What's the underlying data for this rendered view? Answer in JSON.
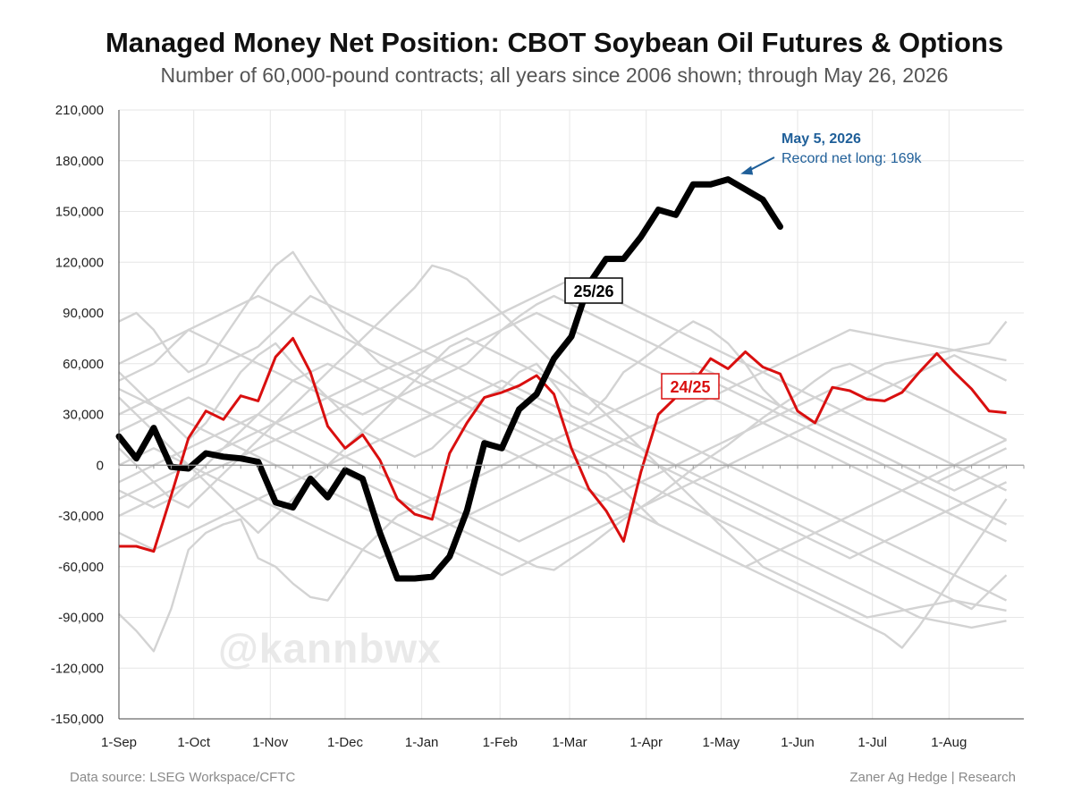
{
  "title": "Managed Money Net Position: CBOT Soybean Oil Futures & Options",
  "subtitle": "Number of 60,000-pound contracts; all years since 2006 shown; through May 26, 2026",
  "watermark": "@kannbwx",
  "footer": {
    "source": "Data source: LSEG Workspace/CFTC",
    "credit": "Zaner Ag Hedge | Research"
  },
  "colors": {
    "current": "#000000",
    "previous": "#d90f0f",
    "history": "#d3d3d3",
    "annotation": "#1f5f99"
  },
  "chart_data": {
    "type": "line",
    "x_unit": "weeks since Sep 1",
    "xlim": [
      0,
      52
    ],
    "ylim": [
      -150000,
      210000
    ],
    "y_ticks": [
      -150000,
      -120000,
      -90000,
      -60000,
      -30000,
      0,
      30000,
      60000,
      90000,
      120000,
      150000,
      180000,
      210000
    ],
    "y_tick_labels": [
      "-150,000",
      "-120,000",
      "-90,000",
      "-60,000",
      "-30,000",
      "0",
      "30,000",
      "60,000",
      "90,000",
      "120,000",
      "150,000",
      "180,000",
      "210,000"
    ],
    "x_ticks": [
      0,
      4.3,
      8.7,
      13,
      17.4,
      21.9,
      25.9,
      30.3,
      34.6,
      39,
      43.3,
      47.7
    ],
    "x_tick_labels": [
      "1-Sep",
      "1-Oct",
      "1-Nov",
      "1-Dec",
      "1-Jan",
      "1-Feb",
      "1-Mar",
      "1-Apr",
      "1-May",
      "1-Jun",
      "1-Jul",
      "1-Aug"
    ],
    "grid": true,
    "legend": "none",
    "series": [
      {
        "name": "25/26",
        "label": "25/26",
        "color": "#000000",
        "width": 7,
        "y": [
          17000,
          4000,
          22000,
          -1000,
          -2000,
          7000,
          5000,
          4000,
          2000,
          -22000,
          -25000,
          -8000,
          -19000,
          -3000,
          -8000,
          -40000,
          -67000,
          -67000,
          -66000,
          -54000,
          -27000,
          13000,
          10000,
          33000,
          42000,
          63000,
          76000,
          107000,
          122000,
          122000,
          135000,
          151000,
          148000,
          166000,
          166000,
          169000,
          163000,
          157000,
          141000
        ]
      },
      {
        "name": "24/25",
        "label": "24/25",
        "color": "#d90f0f",
        "width": 3,
        "y": [
          -48000,
          -48000,
          -51000,
          -18000,
          16000,
          32000,
          27000,
          41000,
          38000,
          64000,
          75000,
          55000,
          23000,
          10000,
          18000,
          3000,
          -20000,
          -29000,
          -32000,
          7000,
          25000,
          40000,
          43000,
          47000,
          53000,
          42000,
          10000,
          -14000,
          -27000,
          -45000,
          -4000,
          30000,
          40000,
          49000,
          63000,
          57000,
          67000,
          58000,
          54000,
          32000,
          25000,
          46000,
          44000,
          39000,
          38000,
          43000,
          55000,
          66000,
          55000,
          45000,
          32000,
          31000
        ]
      },
      {
        "name": "",
        "y": [
          55000,
          45000,
          35000,
          25000,
          15000,
          25000,
          40000,
          55000,
          65000,
          72000,
          60000,
          50000,
          40000,
          30000,
          20000,
          15000,
          10000,
          5000,
          10000,
          20000,
          30000,
          40000,
          45000,
          55000,
          60000,
          48000,
          35000,
          30000,
          40000,
          55000,
          62000,
          70000,
          78000,
          85000,
          80000,
          72000,
          60000,
          45000,
          35000,
          30000,
          25000,
          20000,
          15000,
          10000,
          5000,
          0,
          -5000,
          -10000,
          -5000,
          0,
          5000,
          10000
        ]
      },
      {
        "name": "",
        "y": [
          85000,
          90000,
          80000,
          65000,
          55000,
          60000,
          75000,
          90000,
          105000,
          118000,
          126000,
          110000,
          95000,
          80000,
          70000,
          60000,
          55000,
          50000,
          45000,
          40000,
          35000,
          30000,
          25000,
          20000,
          15000,
          10000,
          5000,
          0,
          -5000,
          -15000,
          -25000,
          -35000,
          -40000,
          -45000,
          -50000,
          -55000,
          -60000,
          -55000,
          -50000,
          -45000,
          -40000,
          -35000,
          -30000,
          -25000,
          -20000,
          -15000,
          -10000,
          -5000,
          0,
          5000,
          10000,
          15000
        ]
      },
      {
        "name": "",
        "y": [
          -88000,
          -98000,
          -110000,
          -85000,
          -50000,
          -40000,
          -35000,
          -32000,
          -55000,
          -60000,
          -70000,
          -78000,
          -80000,
          -65000,
          -50000,
          -40000,
          -30000,
          -25000,
          -20000,
          -15000,
          -10000,
          -5000,
          0,
          5000,
          10000,
          15000,
          20000,
          25000,
          30000,
          35000,
          40000,
          45000,
          50000,
          55000,
          50000,
          45000,
          40000,
          35000,
          30000,
          25000,
          20000,
          15000,
          10000,
          5000,
          0,
          -5000,
          -10000,
          -15000,
          -20000,
          -25000,
          -30000,
          -35000
        ]
      },
      {
        "name": "",
        "y": [
          50000,
          55000,
          60000,
          70000,
          80000,
          75000,
          70000,
          65000,
          60000,
          55000,
          50000,
          45000,
          40000,
          35000,
          30000,
          35000,
          40000,
          45000,
          50000,
          55000,
          60000,
          70000,
          80000,
          88000,
          95000,
          100000,
          95000,
          90000,
          85000,
          80000,
          75000,
          70000,
          65000,
          60000,
          55000,
          50000,
          45000,
          40000,
          35000,
          30000,
          25000,
          20000,
          15000,
          10000,
          5000,
          0,
          -5000,
          -10000,
          -15000,
          -10000,
          -5000,
          0
        ]
      },
      {
        "name": "",
        "y": [
          10000,
          0,
          -10000,
          -20000,
          -25000,
          -15000,
          -5000,
          5000,
          15000,
          25000,
          35000,
          45000,
          55000,
          65000,
          75000,
          85000,
          95000,
          105000,
          118000,
          115000,
          110000,
          100000,
          90000,
          80000,
          70000,
          60000,
          50000,
          40000,
          30000,
          20000,
          10000,
          0,
          -10000,
          -20000,
          -30000,
          -40000,
          -50000,
          -60000,
          -65000,
          -70000,
          -75000,
          -80000,
          -85000,
          -90000,
          -88000,
          -86000,
          -84000,
          -82000,
          -80000,
          -82000,
          -84000,
          -86000
        ]
      },
      {
        "name": "",
        "y": [
          -15000,
          -20000,
          -25000,
          -20000,
          -10000,
          0,
          10000,
          20000,
          30000,
          40000,
          50000,
          55000,
          60000,
          55000,
          50000,
          45000,
          40000,
          35000,
          30000,
          25000,
          20000,
          15000,
          10000,
          5000,
          0,
          -5000,
          -10000,
          -15000,
          -20000,
          -25000,
          -30000,
          -35000,
          -40000,
          -45000,
          -50000,
          -55000,
          -60000,
          -65000,
          -70000,
          -75000,
          -80000,
          -85000,
          -90000,
          -95000,
          -100000,
          -108000,
          -95000,
          -80000,
          -65000,
          -50000,
          -35000,
          -20000
        ]
      },
      {
        "name": "",
        "y": [
          30000,
          35000,
          40000,
          45000,
          50000,
          55000,
          60000,
          65000,
          70000,
          80000,
          90000,
          100000,
          95000,
          90000,
          85000,
          80000,
          75000,
          70000,
          65000,
          60000,
          55000,
          50000,
          45000,
          40000,
          35000,
          30000,
          25000,
          20000,
          15000,
          10000,
          5000,
          0,
          -5000,
          -10000,
          -15000,
          -20000,
          -25000,
          -30000,
          -35000,
          -40000,
          -45000,
          -50000,
          -55000,
          -50000,
          -45000,
          -40000,
          -35000,
          -30000,
          -25000,
          -20000,
          -15000,
          -10000
        ]
      },
      {
        "name": "",
        "y": [
          -10000,
          -5000,
          0,
          5000,
          10000,
          15000,
          20000,
          25000,
          30000,
          25000,
          20000,
          15000,
          10000,
          5000,
          0,
          -5000,
          -10000,
          -15000,
          -20000,
          -25000,
          -30000,
          -35000,
          -40000,
          -45000,
          -40000,
          -35000,
          -30000,
          -25000,
          -20000,
          -15000,
          -10000,
          -5000,
          0,
          5000,
          10000,
          15000,
          20000,
          25000,
          30000,
          35000,
          40000,
          45000,
          50000,
          55000,
          60000,
          62000,
          64000,
          66000,
          68000,
          70000,
          72000,
          85000
        ]
      },
      {
        "name": "",
        "y": [
          20000,
          25000,
          30000,
          35000,
          40000,
          35000,
          30000,
          25000,
          20000,
          15000,
          10000,
          5000,
          0,
          -5000,
          -10000,
          -15000,
          -20000,
          -25000,
          -30000,
          -35000,
          -40000,
          -45000,
          -50000,
          -55000,
          -60000,
          -62000,
          -55000,
          -48000,
          -40000,
          -32000,
          -25000,
          -18000,
          -10000,
          -2000,
          5000,
          12000,
          20000,
          28000,
          35000,
          42000,
          50000,
          57000,
          60000,
          55000,
          50000,
          45000,
          40000,
          35000,
          30000,
          25000,
          20000,
          15000
        ]
      },
      {
        "name": "",
        "y": [
          -30000,
          -25000,
          -20000,
          -15000,
          -10000,
          -5000,
          0,
          5000,
          10000,
          15000,
          20000,
          25000,
          30000,
          35000,
          40000,
          45000,
          50000,
          55000,
          60000,
          65000,
          70000,
          75000,
          80000,
          85000,
          90000,
          85000,
          80000,
          75000,
          70000,
          65000,
          60000,
          55000,
          50000,
          45000,
          40000,
          35000,
          30000,
          25000,
          20000,
          15000,
          10000,
          5000,
          0,
          -5000,
          -10000,
          -15000,
          -20000,
          -25000,
          -30000,
          -35000,
          -40000,
          -45000
        ]
      },
      {
        "name": "",
        "y": [
          40000,
          30000,
          20000,
          10000,
          0,
          -10000,
          -20000,
          -30000,
          -40000,
          -30000,
          -20000,
          -10000,
          0,
          10000,
          20000,
          30000,
          40000,
          50000,
          60000,
          70000,
          75000,
          70000,
          65000,
          60000,
          55000,
          50000,
          45000,
          40000,
          35000,
          30000,
          25000,
          20000,
          15000,
          10000,
          5000,
          0,
          -5000,
          -10000,
          -15000,
          -20000,
          -25000,
          -30000,
          -35000,
          -40000,
          -45000,
          -50000,
          -55000,
          -60000,
          -65000,
          -70000,
          -75000,
          -80000
        ]
      },
      {
        "name": "",
        "y": [
          0,
          5000,
          10000,
          5000,
          0,
          -5000,
          -10000,
          -15000,
          -20000,
          -25000,
          -30000,
          -35000,
          -40000,
          -45000,
          -50000,
          -55000,
          -50000,
          -45000,
          -40000,
          -35000,
          -30000,
          -25000,
          -20000,
          -15000,
          -10000,
          -5000,
          0,
          5000,
          10000,
          15000,
          20000,
          25000,
          30000,
          35000,
          40000,
          45000,
          50000,
          55000,
          60000,
          65000,
          70000,
          75000,
          80000,
          78000,
          76000,
          74000,
          72000,
          70000,
          68000,
          66000,
          64000,
          62000
        ]
      },
      {
        "name": "",
        "y": [
          60000,
          65000,
          70000,
          75000,
          80000,
          85000,
          90000,
          95000,
          100000,
          95000,
          90000,
          85000,
          80000,
          75000,
          70000,
          65000,
          60000,
          55000,
          50000,
          45000,
          40000,
          35000,
          30000,
          25000,
          20000,
          15000,
          10000,
          5000,
          0,
          -5000,
          -10000,
          -15000,
          -20000,
          -25000,
          -30000,
          -35000,
          -40000,
          -45000,
          -50000,
          -55000,
          -60000,
          -65000,
          -70000,
          -75000,
          -80000,
          -85000,
          -90000,
          -92000,
          -94000,
          -96000,
          -94000,
          -92000
        ]
      },
      {
        "name": "",
        "y": [
          -20000,
          -15000,
          -10000,
          -5000,
          0,
          5000,
          10000,
          15000,
          20000,
          25000,
          30000,
          35000,
          40000,
          45000,
          50000,
          55000,
          60000,
          65000,
          70000,
          75000,
          80000,
          85000,
          90000,
          95000,
          100000,
          105000,
          110000,
          105000,
          100000,
          95000,
          90000,
          85000,
          80000,
          75000,
          70000,
          65000,
          60000,
          55000,
          50000,
          45000,
          40000,
          35000,
          30000,
          25000,
          20000,
          15000,
          10000,
          5000,
          0,
          -5000,
          -10000,
          -15000
        ]
      },
      {
        "name": "",
        "y": [
          45000,
          40000,
          35000,
          30000,
          25000,
          20000,
          15000,
          10000,
          5000,
          0,
          -5000,
          -10000,
          -15000,
          -20000,
          -25000,
          -30000,
          -35000,
          -40000,
          -45000,
          -50000,
          -55000,
          -60000,
          -65000,
          -60000,
          -55000,
          -50000,
          -45000,
          -40000,
          -35000,
          -30000,
          -25000,
          -20000,
          -15000,
          -10000,
          -5000,
          0,
          5000,
          10000,
          15000,
          20000,
          25000,
          30000,
          35000,
          40000,
          45000,
          50000,
          55000,
          60000,
          65000,
          60000,
          55000,
          50000
        ]
      },
      {
        "name": "",
        "y": [
          -40000,
          -45000,
          -50000,
          -45000,
          -40000,
          -35000,
          -30000,
          -25000,
          -20000,
          -15000,
          -10000,
          -5000,
          0,
          5000,
          10000,
          15000,
          20000,
          25000,
          30000,
          35000,
          40000,
          45000,
          50000,
          45000,
          40000,
          35000,
          30000,
          25000,
          20000,
          15000,
          10000,
          5000,
          0,
          -5000,
          -10000,
          -15000,
          -20000,
          -25000,
          -30000,
          -35000,
          -40000,
          -45000,
          -50000,
          -55000,
          -60000,
          -65000,
          -70000,
          -75000,
          -80000,
          -85000,
          -75000,
          -65000
        ]
      }
    ],
    "annotations": [
      {
        "title": "May 5, 2026",
        "text": "Record net long: 169k",
        "x": 35,
        "y": 169000
      }
    ]
  }
}
